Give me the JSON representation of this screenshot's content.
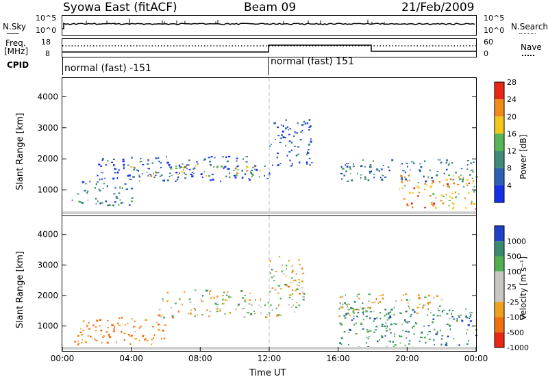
{
  "header": {
    "station": "Syowa East (fitACF)",
    "beam": "Beam 09",
    "date": "21/Feb/2009"
  },
  "strip_panels": {
    "nsky_label": "N.Sky",
    "nsky_ticks": [
      "10^5",
      "10^0"
    ],
    "nsearch_label": "N.Search",
    "nsearch_ticks": [
      "10^5",
      "10^0"
    ],
    "freq_label_1": "Freq.",
    "freq_label_2": "[MHz]",
    "freq_ticks": [
      "18",
      "8"
    ],
    "nave_label": "Nave",
    "nave_ticks": [
      "60",
      "0"
    ],
    "cpid_label": "CPID",
    "cpid_segments": [
      "normal (fast) -151",
      "normal (fast) 151"
    ]
  },
  "chart_data": [
    {
      "type": "heatmap",
      "title": "",
      "ylabel": "Slant Range [km]",
      "xlabel": "",
      "ylim": [
        180,
        4600
      ],
      "xlim": [
        "00:00",
        "24:00"
      ],
      "y_ticks": [
        "1000",
        "2000",
        "3000",
        "4000"
      ],
      "colorbar_label": "Power [dB]",
      "colorbar_ticks": [
        "4",
        "8",
        "12",
        "16",
        "20",
        "24",
        "28"
      ],
      "colorbar_colors": [
        "#1430e6",
        "#2d5fb4",
        "#3f8a78",
        "#56b556",
        "#f2c81a",
        "#f28a1a",
        "#e62814"
      ],
      "echo_regions": [
        {
          "t_start": 0.5,
          "t_end": 4.0,
          "r_start": 500,
          "r_end": 1300,
          "level": 2
        },
        {
          "t_start": 2.0,
          "t_end": 12.0,
          "r_start": 1300,
          "r_end": 2100,
          "level": 1
        },
        {
          "t_start": 3.5,
          "t_end": 12.0,
          "r_start": 1450,
          "r_end": 1800,
          "level": 4
        },
        {
          "t_start": 12.0,
          "t_end": 14.5,
          "r_start": 1800,
          "r_end": 3300,
          "level": 1
        },
        {
          "t_start": 16.0,
          "t_end": 24.0,
          "r_start": 1300,
          "r_end": 2000,
          "level": 2
        },
        {
          "t_start": 19.5,
          "t_end": 24.0,
          "r_start": 400,
          "r_end": 1500,
          "level": 5
        }
      ]
    },
    {
      "type": "heatmap",
      "title": "",
      "ylabel": "Slant Range [km]",
      "xlabel": "Time UT",
      "ylim": [
        180,
        4600
      ],
      "xlim": [
        "00:00",
        "24:00"
      ],
      "x_ticks": [
        "00:00",
        "04:00",
        "08:00",
        "12:00",
        "16:00",
        "20:00",
        "00:00"
      ],
      "y_ticks": [
        "1000",
        "2000",
        "3000",
        "4000"
      ],
      "colorbar_label": "Velocity [m s⁻¹]",
      "colorbar_ticks": [
        "1000",
        "500",
        "100",
        "25",
        "-25",
        "-100",
        "-500",
        "-1000"
      ],
      "colorbar_colors": [
        "#2040c8",
        "#3a8a70",
        "#50b050",
        "#c8c8c0",
        "#c8c8c0",
        "#f0a020",
        "#f07010",
        "#e62814"
      ],
      "echo_regions": [
        {
          "t_start": 0.5,
          "t_end": 6.0,
          "r_start": 400,
          "r_end": 1300,
          "velocity": -300
        },
        {
          "t_start": 5.5,
          "t_end": 14.0,
          "r_start": 1300,
          "r_end": 2200,
          "velocity": 0
        },
        {
          "t_start": 12.0,
          "t_end": 14.0,
          "r_start": 2200,
          "r_end": 3400,
          "velocity": 0
        },
        {
          "t_start": 16.0,
          "t_end": 22.0,
          "r_start": 1300,
          "r_end": 2100,
          "velocity": 0
        },
        {
          "t_start": 16.0,
          "t_end": 24.0,
          "r_start": 300,
          "r_end": 1600,
          "velocity": 400
        }
      ]
    }
  ]
}
